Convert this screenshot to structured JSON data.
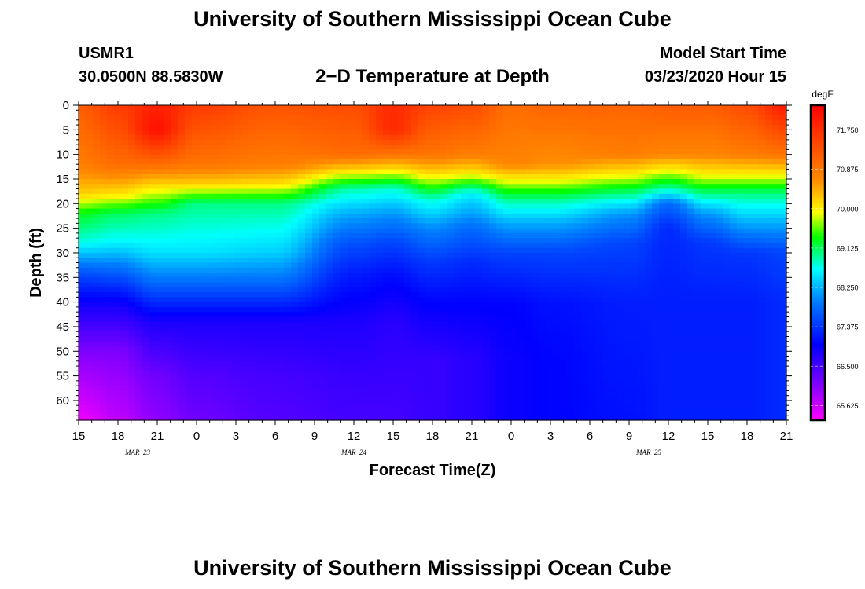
{
  "header": {
    "title": "University of Southern Mississippi Ocean Cube",
    "station": "USMR1",
    "location": "30.0500N 88.5830W",
    "subtitle": "2−D Temperature at Depth",
    "model_label": "Model Start Time",
    "model_time": "03/23/2020 Hour 15"
  },
  "footer": {
    "title": "University of Southern Mississippi Ocean Cube"
  },
  "chart_data": {
    "type": "heatmap",
    "title": "2-D Temperature at Depth",
    "xlabel": "Forecast Time(Z)",
    "ylabel": "Depth (ft)",
    "x_hours_range": [
      0,
      54
    ],
    "x_tick_labels": [
      "15",
      "18",
      "21",
      "0",
      "3",
      "6",
      "9",
      "12",
      "15",
      "18",
      "21",
      "0",
      "3",
      "6",
      "9",
      "12",
      "15",
      "18",
      "21"
    ],
    "date_labels": [
      {
        "label": "MAR 23",
        "at_hour": 4.5
      },
      {
        "label": "MAR 24",
        "at_hour": 21
      },
      {
        "label": "MAR 25",
        "at_hour": 43.5
      }
    ],
    "y_ticks": [
      0,
      5,
      10,
      15,
      20,
      25,
      30,
      35,
      40,
      45,
      50,
      55,
      60
    ],
    "ylim": [
      0,
      64
    ],
    "colorbar": {
      "unit": "degF",
      "min": 65.3,
      "max": 72.3,
      "labels": [
        "71.750",
        "70.875",
        "70.000",
        "69.125",
        "68.250",
        "67.375",
        "66.500",
        "65.625"
      ]
    },
    "profiles": [
      {
        "hour": 0,
        "depths": [
          0,
          12,
          18,
          22,
          28,
          34,
          40,
          50,
          64
        ],
        "temps": [
          71.2,
          70.8,
          70.2,
          69.3,
          68.7,
          67.6,
          66.9,
          66.1,
          65.4
        ]
      },
      {
        "hour": 3,
        "depths": [
          0,
          12,
          18,
          22,
          28,
          34,
          40,
          50,
          64
        ],
        "temps": [
          71.6,
          71.0,
          70.1,
          69.1,
          68.6,
          67.7,
          66.9,
          66.1,
          65.7
        ]
      },
      {
        "hour": 6,
        "depths": [
          0,
          5,
          12,
          17,
          22,
          30,
          36,
          44,
          55,
          64
        ],
        "temps": [
          71.9,
          72.1,
          71.0,
          70.0,
          69.0,
          68.5,
          67.8,
          66.8,
          66.2,
          66.0
        ]
      },
      {
        "hour": 9,
        "depths": [
          0,
          12,
          16,
          20,
          30,
          36,
          44,
          55,
          64
        ],
        "temps": [
          71.6,
          70.9,
          70.2,
          69.0,
          68.5,
          67.8,
          66.8,
          66.4,
          66.2
        ]
      },
      {
        "hour": 15,
        "depths": [
          0,
          12,
          16,
          20,
          30,
          36,
          44,
          55,
          64
        ],
        "temps": [
          71.3,
          70.8,
          70.1,
          69.0,
          68.4,
          67.8,
          66.8,
          66.5,
          66.4
        ]
      },
      {
        "hour": 21,
        "depths": [
          0,
          10,
          13,
          17,
          22,
          28,
          34,
          44,
          55,
          64
        ],
        "temps": [
          71.4,
          71.0,
          70.2,
          68.9,
          68.2,
          67.6,
          67.2,
          66.8,
          66.6,
          66.5
        ]
      },
      {
        "hour": 24,
        "depths": [
          0,
          5,
          10,
          13,
          17,
          22,
          28,
          34,
          44,
          64
        ],
        "temps": [
          71.8,
          71.8,
          70.9,
          70.1,
          68.8,
          68.1,
          67.5,
          67.1,
          66.7,
          66.5
        ]
      },
      {
        "hour": 27,
        "depths": [
          0,
          10,
          14,
          19,
          25,
          32,
          40,
          52,
          64
        ],
        "temps": [
          71.5,
          70.9,
          70.1,
          68.8,
          68.0,
          67.4,
          67.0,
          66.6,
          66.6
        ]
      },
      {
        "hour": 30,
        "depths": [
          0,
          10,
          14,
          18,
          25,
          32,
          40,
          52,
          64
        ],
        "temps": [
          71.4,
          70.8,
          70.0,
          68.6,
          67.8,
          67.3,
          67.0,
          66.7,
          66.7
        ]
      },
      {
        "hour": 33,
        "depths": [
          0,
          12,
          15,
          19,
          24,
          30,
          40,
          52,
          64
        ],
        "temps": [
          71.0,
          70.7,
          70.0,
          69.0,
          68.2,
          67.5,
          67.0,
          66.9,
          66.9
        ]
      },
      {
        "hour": 36,
        "depths": [
          0,
          12,
          15,
          19,
          24,
          30,
          40,
          52,
          64
        ],
        "temps": [
          71.1,
          70.6,
          70.0,
          69.0,
          68.2,
          67.5,
          67.1,
          67.0,
          67.0
        ]
      },
      {
        "hour": 42,
        "depths": [
          0,
          10,
          14,
          18,
          22,
          28,
          40,
          64
        ],
        "temps": [
          71.1,
          70.8,
          70.0,
          69.0,
          68.1,
          67.5,
          67.2,
          67.1
        ]
      },
      {
        "hour": 45,
        "depths": [
          0,
          10,
          13,
          17,
          20,
          25,
          40,
          64
        ],
        "temps": [
          71.2,
          70.7,
          70.0,
          68.9,
          67.8,
          67.3,
          67.2,
          67.2
        ]
      },
      {
        "hour": 48,
        "depths": [
          0,
          10,
          14,
          18,
          22,
          28,
          40,
          64
        ],
        "temps": [
          71.2,
          70.7,
          70.0,
          69.0,
          68.1,
          67.4,
          67.2,
          67.2
        ]
      },
      {
        "hour": 51,
        "depths": [
          0,
          10,
          14,
          18,
          24,
          30,
          40,
          64
        ],
        "temps": [
          71.4,
          70.8,
          70.0,
          69.0,
          68.2,
          67.4,
          67.2,
          67.2
        ]
      },
      {
        "hour": 54,
        "depths": [
          0,
          10,
          14,
          18,
          24,
          30,
          40,
          64
        ],
        "temps": [
          72.0,
          70.9,
          70.0,
          69.0,
          68.2,
          67.5,
          67.3,
          67.3
        ]
      }
    ]
  }
}
